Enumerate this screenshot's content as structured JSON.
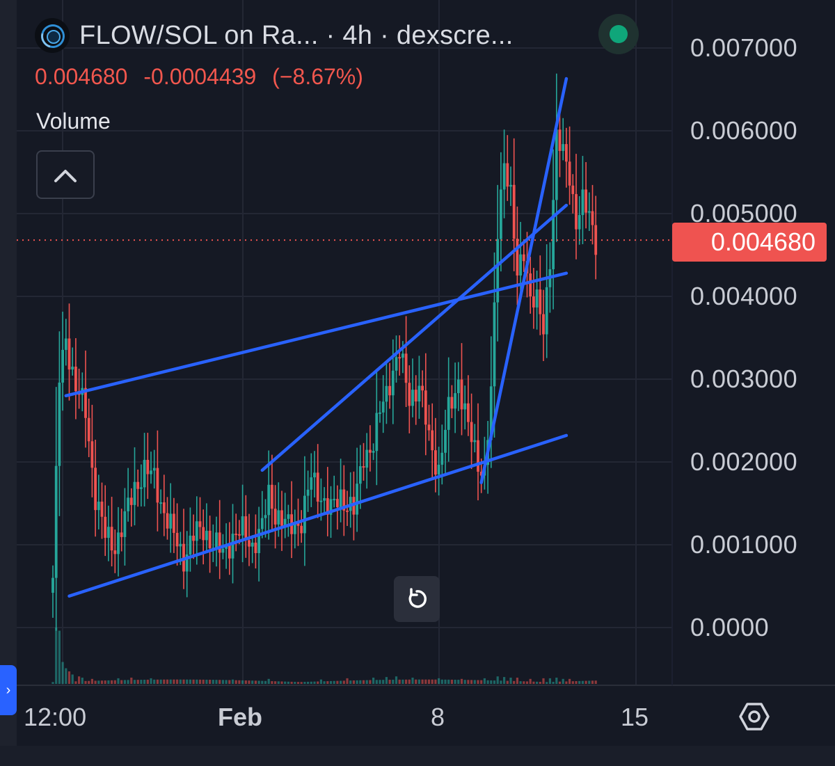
{
  "header": {
    "pair": "FLOW/SOL on Ra...",
    "interval": "· 4h ·",
    "source": "dexscre...",
    "status_color": "#0fa67a"
  },
  "price_info": {
    "last": "0.004680",
    "change": "-0.0004439",
    "change_pct": "(−8.67%)",
    "color": "#f2574e"
  },
  "volume_label": "Volume",
  "icons": {
    "collapse": "chevron-up-icon",
    "reset": "reset-icon",
    "settings": "settings-icon",
    "side_tab": "chevron-right-icon"
  },
  "price_tag": "0.004680",
  "side_tab_glyph": "›",
  "chart_data": {
    "type": "candlestick",
    "interval": "4h",
    "up_color": "#26a69a",
    "down_color": "#ef5350",
    "trendline_color": "#2962ff",
    "ylim": [
      0,
      0.0072
    ],
    "yticks": [
      "0.007000",
      "0.006000",
      "0.005000",
      "0.004000",
      "0.003000",
      "0.002000",
      "0.001000",
      "0.0000"
    ],
    "xticks": [
      "12:00",
      "Feb",
      "8",
      "15"
    ],
    "last_price": 0.00468,
    "price_anchors": [
      [
        0,
        0.0006
      ],
      [
        2,
        0.003
      ],
      [
        4,
        0.0035
      ],
      [
        7,
        0.0029
      ],
      [
        10,
        0.0026
      ],
      [
        13,
        0.0016
      ],
      [
        16,
        0.0011
      ],
      [
        19,
        0.001
      ],
      [
        22,
        0.0013
      ],
      [
        25,
        0.0017
      ],
      [
        28,
        0.0019
      ],
      [
        31,
        0.0018
      ],
      [
        34,
        0.0014
      ],
      [
        37,
        0.0011
      ],
      [
        40,
        0.00085
      ],
      [
        43,
        0.0011
      ],
      [
        46,
        0.0012
      ],
      [
        49,
        0.001
      ],
      [
        52,
        0.0009
      ],
      [
        55,
        0.0011
      ],
      [
        58,
        0.00115
      ],
      [
        61,
        0.001
      ],
      [
        64,
        0.0012
      ],
      [
        66,
        0.0016
      ],
      [
        68,
        0.0014
      ],
      [
        70,
        0.0013
      ],
      [
        72,
        0.0012
      ],
      [
        74,
        0.00125
      ],
      [
        76,
        0.0013
      ],
      [
        79,
        0.0018
      ],
      [
        82,
        0.0016
      ],
      [
        85,
        0.0014
      ],
      [
        88,
        0.0016
      ],
      [
        90,
        0.0015
      ],
      [
        92,
        0.0014
      ],
      [
        95,
        0.0021
      ],
      [
        98,
        0.0022
      ],
      [
        100,
        0.0026
      ],
      [
        103,
        0.003
      ],
      [
        106,
        0.0033
      ],
      [
        109,
        0.0028
      ],
      [
        112,
        0.0029
      ],
      [
        115,
        0.0023
      ],
      [
        118,
        0.0019
      ],
      [
        121,
        0.0026
      ],
      [
        124,
        0.003
      ],
      [
        127,
        0.0024
      ],
      [
        130,
        0.002
      ],
      [
        132,
        0.0019
      ],
      [
        134,
        0.0028
      ],
      [
        136,
        0.0048
      ],
      [
        138,
        0.0057
      ],
      [
        140,
        0.0052
      ],
      [
        142,
        0.0042
      ],
      [
        144,
        0.0046
      ],
      [
        146,
        0.004
      ],
      [
        148,
        0.0039
      ],
      [
        150,
        0.0036
      ],
      [
        152,
        0.0045
      ],
      [
        154,
        0.0059
      ],
      [
        156,
        0.0057
      ],
      [
        158,
        0.0055
      ],
      [
        160,
        0.0049
      ],
      [
        162,
        0.0051
      ],
      [
        164,
        0.005
      ],
      [
        166,
        0.0047
      ]
    ],
    "volume_spikes": [
      [
        1,
        0.9
      ],
      [
        2,
        0.85
      ],
      [
        3,
        0.35
      ],
      [
        4,
        0.25
      ],
      [
        5,
        0.2
      ],
      [
        6,
        0.15
      ],
      [
        8,
        0.12
      ],
      [
        9,
        0.1
      ],
      [
        12,
        0.08
      ],
      [
        20,
        0.09
      ],
      [
        24,
        0.1
      ],
      [
        30,
        0.09
      ],
      [
        36,
        0.07
      ],
      [
        55,
        0.07
      ],
      [
        66,
        0.08
      ],
      [
        82,
        0.07
      ],
      [
        90,
        0.09
      ],
      [
        98,
        0.1
      ],
      [
        102,
        0.11
      ],
      [
        105,
        0.12
      ],
      [
        110,
        0.1
      ],
      [
        118,
        0.09
      ],
      [
        125,
        0.08
      ],
      [
        132,
        0.09
      ],
      [
        136,
        0.12
      ],
      [
        138,
        0.11
      ],
      [
        140,
        0.1
      ],
      [
        142,
        0.1
      ],
      [
        146,
        0.08
      ],
      [
        150,
        0.09
      ],
      [
        152,
        0.09
      ],
      [
        154,
        0.1
      ],
      [
        156,
        0.08
      ],
      [
        158,
        0.08
      ]
    ],
    "trendlines": [
      {
        "name": "upper-channel",
        "from": [
          4,
          0.0028
        ],
        "to": [
          157,
          0.00428
        ]
      },
      {
        "name": "lower-channel",
        "from": [
          5,
          0.00038
        ],
        "to": [
          157,
          0.00232
        ]
      },
      {
        "name": "mid-channel",
        "from": [
          64,
          0.0019
        ],
        "to": [
          157,
          0.0051
        ]
      },
      {
        "name": "steep-breakout",
        "from": [
          131,
          0.00175
        ],
        "to": [
          157,
          0.00663
        ]
      }
    ]
  }
}
